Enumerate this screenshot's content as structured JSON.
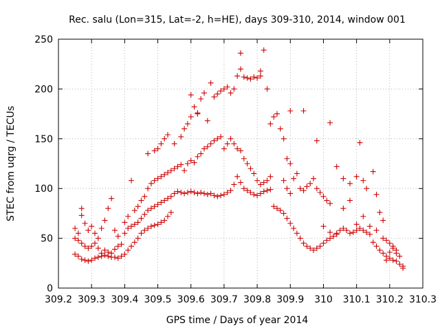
{
  "chart_data": {
    "type": "scatter",
    "title": "Rec. salu (Lon=315, Lat=-2, h=HE), days 309-310, 2014, window 001",
    "xlabel": "GPS time / Days of year 2014",
    "ylabel": "STEC from uqrg / TECUs",
    "xlim": [
      309.2,
      310.3
    ],
    "ylim": [
      0,
      250
    ],
    "x_ticks": [
      "309.2",
      "309.3",
      "309.4",
      "309.5",
      "309.6",
      "309.7",
      "309.8",
      "309.9",
      "310",
      "310.1",
      "310.2",
      "310.3"
    ],
    "y_ticks": [
      "0",
      "50",
      "100",
      "150",
      "200",
      "250"
    ],
    "grid": true,
    "marker": "+",
    "color": "#cc0000",
    "series": [
      {
        "points": [
          [
            309.25,
            34
          ],
          [
            309.26,
            32
          ],
          [
            309.27,
            29
          ],
          [
            309.28,
            28
          ],
          [
            309.29,
            27
          ],
          [
            309.3,
            28
          ],
          [
            309.31,
            30
          ],
          [
            309.32,
            31
          ],
          [
            309.33,
            32
          ],
          [
            309.34,
            33
          ],
          [
            309.35,
            32
          ],
          [
            309.36,
            31
          ],
          [
            309.37,
            31
          ],
          [
            309.38,
            30
          ],
          [
            309.39,
            32
          ],
          [
            309.25,
            50
          ],
          [
            309.26,
            48
          ],
          [
            309.27,
            45
          ],
          [
            309.28,
            42
          ],
          [
            309.29,
            40
          ],
          [
            309.3,
            42
          ],
          [
            309.31,
            45
          ],
          [
            309.32,
            40
          ],
          [
            309.33,
            35
          ],
          [
            309.34,
            38
          ],
          [
            309.35,
            36
          ],
          [
            309.36,
            35
          ],
          [
            309.37,
            39
          ],
          [
            309.38,
            42
          ],
          [
            309.39,
            44
          ],
          [
            309.25,
            60
          ],
          [
            309.26,
            55
          ],
          [
            309.27,
            80
          ],
          [
            309.27,
            73
          ],
          [
            309.28,
            65
          ],
          [
            309.29,
            58
          ],
          [
            309.3,
            62
          ],
          [
            309.31,
            55
          ],
          [
            309.32,
            50
          ],
          [
            309.33,
            60
          ],
          [
            309.34,
            68
          ],
          [
            309.35,
            80
          ],
          [
            309.36,
            90
          ],
          [
            309.37,
            58
          ],
          [
            309.38,
            52
          ],
          [
            309.4,
            34
          ],
          [
            309.41,
            38
          ],
          [
            309.42,
            42
          ],
          [
            309.43,
            46
          ],
          [
            309.44,
            50
          ],
          [
            309.45,
            55
          ],
          [
            309.46,
            58
          ],
          [
            309.47,
            60
          ],
          [
            309.48,
            62
          ],
          [
            309.49,
            63
          ],
          [
            309.5,
            64
          ],
          [
            309.51,
            66
          ],
          [
            309.52,
            68
          ],
          [
            309.53,
            72
          ],
          [
            309.54,
            76
          ],
          [
            309.4,
            55
          ],
          [
            309.41,
            60
          ],
          [
            309.42,
            62
          ],
          [
            309.43,
            64
          ],
          [
            309.44,
            66
          ],
          [
            309.45,
            70
          ],
          [
            309.46,
            74
          ],
          [
            309.47,
            78
          ],
          [
            309.48,
            80
          ],
          [
            309.49,
            82
          ],
          [
            309.5,
            84
          ],
          [
            309.51,
            86
          ],
          [
            309.52,
            88
          ],
          [
            309.53,
            90
          ],
          [
            309.54,
            92
          ],
          [
            309.4,
            66
          ],
          [
            309.41,
            72
          ],
          [
            309.42,
            108
          ],
          [
            309.43,
            78
          ],
          [
            309.44,
            82
          ],
          [
            309.45,
            88
          ],
          [
            309.46,
            92
          ],
          [
            309.47,
            100
          ],
          [
            309.48,
            105
          ],
          [
            309.49,
            108
          ],
          [
            309.5,
            110
          ],
          [
            309.51,
            112
          ],
          [
            309.52,
            114
          ],
          [
            309.53,
            116
          ],
          [
            309.54,
            118
          ],
          [
            309.47,
            135
          ],
          [
            309.49,
            138
          ],
          [
            309.5,
            140
          ],
          [
            309.51,
            145
          ],
          [
            309.52,
            150
          ],
          [
            309.53,
            154
          ],
          [
            309.55,
            145
          ],
          [
            309.57,
            152
          ],
          [
            309.58,
            160
          ],
          [
            309.59,
            165
          ],
          [
            309.6,
            172
          ],
          [
            309.61,
            182
          ],
          [
            309.62,
            176
          ],
          [
            309.63,
            190
          ],
          [
            309.64,
            196
          ],
          [
            309.55,
            95
          ],
          [
            309.56,
            97
          ],
          [
            309.57,
            96
          ],
          [
            309.58,
            95
          ],
          [
            309.59,
            96
          ],
          [
            309.6,
            97
          ],
          [
            309.61,
            96
          ],
          [
            309.62,
            95
          ],
          [
            309.63,
            96
          ],
          [
            309.64,
            95
          ],
          [
            309.65,
            94
          ],
          [
            309.66,
            95
          ],
          [
            309.67,
            93
          ],
          [
            309.68,
            92
          ],
          [
            309.69,
            93
          ],
          [
            309.55,
            120
          ],
          [
            309.56,
            122
          ],
          [
            309.57,
            124
          ],
          [
            309.58,
            118
          ],
          [
            309.59,
            125
          ],
          [
            309.6,
            128
          ],
          [
            309.61,
            126
          ],
          [
            309.62,
            132
          ],
          [
            309.63,
            135
          ],
          [
            309.64,
            140
          ],
          [
            309.65,
            142
          ],
          [
            309.66,
            145
          ],
          [
            309.67,
            148
          ],
          [
            309.68,
            150
          ],
          [
            309.69,
            152
          ],
          [
            309.6,
            194
          ],
          [
            309.62,
            175
          ],
          [
            309.65,
            168
          ],
          [
            309.66,
            206
          ],
          [
            309.67,
            192
          ],
          [
            309.68,
            195
          ],
          [
            309.69,
            198
          ],
          [
            309.7,
            200
          ],
          [
            309.71,
            202
          ],
          [
            309.72,
            196
          ],
          [
            309.73,
            200
          ],
          [
            309.74,
            213
          ],
          [
            309.75,
            220
          ],
          [
            309.75,
            236
          ],
          [
            309.76,
            212
          ],
          [
            309.7,
            94
          ],
          [
            309.71,
            96
          ],
          [
            309.72,
            98
          ],
          [
            309.73,
            104
          ],
          [
            309.74,
            112
          ],
          [
            309.75,
            106
          ],
          [
            309.76,
            100
          ],
          [
            309.77,
            98
          ],
          [
            309.78,
            96
          ],
          [
            309.79,
            94
          ],
          [
            309.8,
            93
          ],
          [
            309.81,
            95
          ],
          [
            309.82,
            97
          ],
          [
            309.83,
            98
          ],
          [
            309.84,
            99
          ],
          [
            309.7,
            140
          ],
          [
            309.71,
            145
          ],
          [
            309.72,
            150
          ],
          [
            309.73,
            145
          ],
          [
            309.74,
            140
          ],
          [
            309.75,
            138
          ],
          [
            309.76,
            130
          ],
          [
            309.77,
            125
          ],
          [
            309.78,
            120
          ],
          [
            309.79,
            115
          ],
          [
            309.8,
            108
          ],
          [
            309.81,
            104
          ],
          [
            309.82,
            106
          ],
          [
            309.83,
            108
          ],
          [
            309.84,
            112
          ],
          [
            309.77,
            211
          ],
          [
            309.78,
            210
          ],
          [
            309.79,
            212
          ],
          [
            309.8,
            211
          ],
          [
            309.81,
            213
          ],
          [
            309.81,
            218
          ],
          [
            309.82,
            239
          ],
          [
            309.83,
            200
          ],
          [
            309.84,
            165
          ],
          [
            309.85,
            172
          ],
          [
            309.86,
            175
          ],
          [
            309.87,
            160
          ],
          [
            309.88,
            150
          ],
          [
            309.89,
            130
          ],
          [
            309.9,
            125
          ],
          [
            309.85,
            82
          ],
          [
            309.86,
            80
          ],
          [
            309.87,
            78
          ],
          [
            309.88,
            75
          ],
          [
            309.89,
            70
          ],
          [
            309.9,
            65
          ],
          [
            309.91,
            60
          ],
          [
            309.92,
            55
          ],
          [
            309.93,
            50
          ],
          [
            309.94,
            45
          ],
          [
            309.95,
            42
          ],
          [
            309.96,
            40
          ],
          [
            309.97,
            38
          ],
          [
            309.98,
            40
          ],
          [
            309.99,
            42
          ],
          [
            309.88,
            108
          ],
          [
            309.89,
            100
          ],
          [
            309.9,
            95
          ],
          [
            309.91,
            110
          ],
          [
            309.92,
            115
          ],
          [
            309.93,
            100
          ],
          [
            309.94,
            98
          ],
          [
            309.95,
            102
          ],
          [
            309.96,
            105
          ],
          [
            309.97,
            110
          ],
          [
            309.98,
            100
          ],
          [
            309.99,
            96
          ],
          [
            310.0,
            92
          ],
          [
            310.01,
            88
          ],
          [
            310.02,
            85
          ],
          [
            309.9,
            178
          ],
          [
            309.94,
            178
          ],
          [
            309.98,
            148
          ],
          [
            310.02,
            166
          ],
          [
            310.04,
            122
          ],
          [
            310.06,
            110
          ],
          [
            310.08,
            105
          ],
          [
            310.1,
            112
          ],
          [
            310.11,
            146
          ],
          [
            310.12,
            108
          ],
          [
            310.13,
            100
          ],
          [
            310.15,
            117
          ],
          [
            310.16,
            94
          ],
          [
            310.17,
            76
          ],
          [
            310.18,
            68
          ],
          [
            310.0,
            45
          ],
          [
            310.01,
            48
          ],
          [
            310.02,
            50
          ],
          [
            310.03,
            52
          ],
          [
            310.04,
            55
          ],
          [
            310.05,
            58
          ],
          [
            310.06,
            60
          ],
          [
            310.07,
            58
          ],
          [
            310.08,
            55
          ],
          [
            310.09,
            56
          ],
          [
            310.1,
            58
          ],
          [
            310.11,
            60
          ],
          [
            310.12,
            58
          ],
          [
            310.13,
            56
          ],
          [
            310.14,
            54
          ],
          [
            310.0,
            62
          ],
          [
            310.02,
            56
          ],
          [
            310.04,
            54
          ],
          [
            310.06,
            80
          ],
          [
            310.08,
            88
          ],
          [
            310.1,
            64
          ],
          [
            310.12,
            72
          ],
          [
            310.14,
            62
          ],
          [
            310.16,
            58
          ],
          [
            310.18,
            50
          ],
          [
            310.19,
            48
          ],
          [
            310.2,
            45
          ],
          [
            310.21,
            42
          ],
          [
            310.22,
            38
          ],
          [
            310.23,
            32
          ],
          [
            310.15,
            46
          ],
          [
            310.16,
            42
          ],
          [
            310.17,
            38
          ],
          [
            310.18,
            35
          ],
          [
            310.19,
            32
          ],
          [
            310.2,
            30
          ],
          [
            310.21,
            28
          ],
          [
            310.22,
            27
          ],
          [
            310.23,
            24
          ],
          [
            310.24,
            22
          ],
          [
            310.24,
            20
          ],
          [
            310.22,
            35
          ],
          [
            310.21,
            40
          ],
          [
            310.2,
            36
          ],
          [
            310.19,
            28
          ]
        ]
      }
    ]
  }
}
